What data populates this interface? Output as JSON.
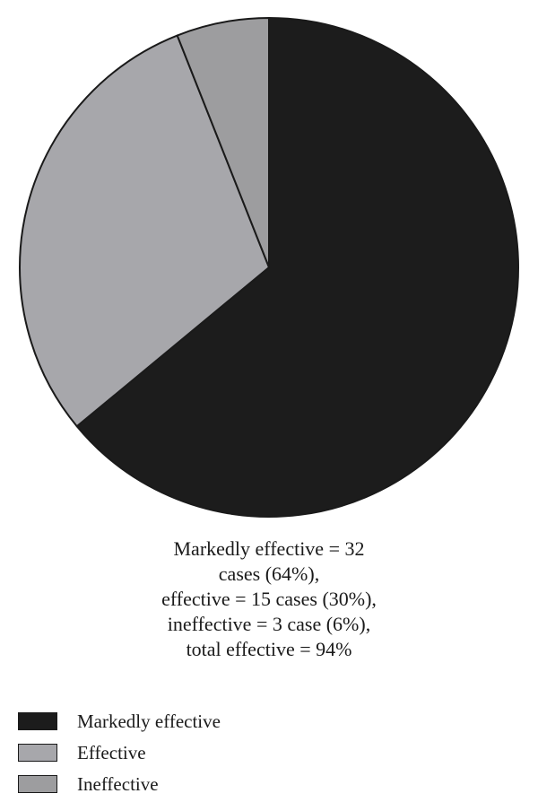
{
  "chart_data": {
    "type": "pie",
    "title": "",
    "slices": [
      {
        "label": "Markedly effective",
        "value": 32,
        "percent": 64,
        "color": "#1c1c1c"
      },
      {
        "label": "Effective",
        "value": 15,
        "percent": 30,
        "color": "#a7a7ab"
      },
      {
        "label": "Ineffective",
        "value": 3,
        "percent": 6,
        "color": "#9d9d9f"
      }
    ],
    "annotation_lines": [
      "Markedly effective = 32",
      "cases (64%),",
      "effective = 15 cases (30%),",
      "ineffective = 3 case (6%),",
      "total effective = 94%"
    ],
    "legend": {
      "placement": "bottom-left",
      "entries": [
        "Markedly effective",
        "Effective",
        "Ineffective"
      ]
    },
    "stroke_color": "#1a1a1a"
  }
}
